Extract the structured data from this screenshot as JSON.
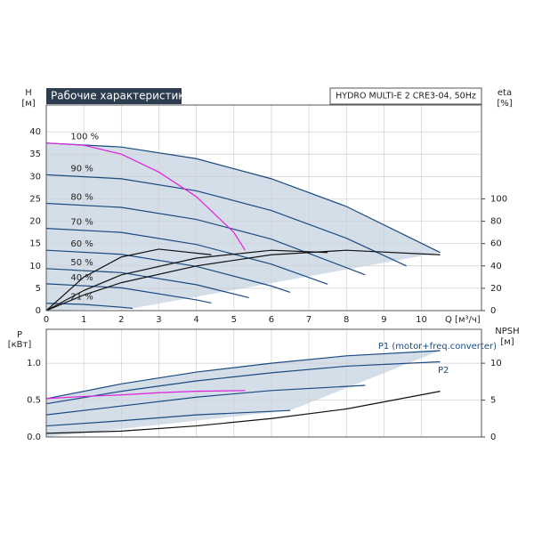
{
  "chart_data": [
    {
      "type": "line",
      "title": "Рабочие характеристики",
      "subtitle": "HYDRO MULTI-E 2 CRE3-04, 50Hz",
      "ylabel": "H",
      "yunit": "[м]",
      "y2label": "eta",
      "y2unit": "[%]",
      "xlabel": "Q [м³/ч]",
      "xlim": [
        0,
        11.6
      ],
      "xticks": [
        0,
        1,
        2,
        3,
        4,
        5,
        6,
        7,
        8,
        9,
        10
      ],
      "ylim": [
        0,
        46
      ],
      "yticks": [
        0,
        5,
        10,
        15,
        20,
        25,
        30,
        35,
        40
      ],
      "y2lim": [
        0,
        184
      ],
      "y2ticks": [
        0,
        20,
        40,
        60,
        80,
        100
      ],
      "grid": true,
      "series": [
        {
          "name": "100 %",
          "color": "#1a4a80",
          "x": [
            0,
            2,
            4,
            6,
            8,
            10.5
          ],
          "values": [
            37.5,
            36.6,
            34,
            29.5,
            23.3,
            13
          ]
        },
        {
          "name": "90 %",
          "color": "#1a4a80",
          "x": [
            0,
            2,
            4,
            6,
            8,
            9.6
          ],
          "values": [
            30.4,
            29.5,
            26.8,
            22.4,
            16.2,
            10
          ]
        },
        {
          "name": "80 %",
          "color": "#1a4a80",
          "x": [
            0,
            2,
            4,
            6,
            8.5
          ],
          "values": [
            24,
            23.1,
            20.4,
            16,
            8
          ]
        },
        {
          "name": "70 %",
          "color": "#1a4a80",
          "x": [
            0,
            2,
            4,
            6,
            7.5
          ],
          "values": [
            18.4,
            17.5,
            14.8,
            10.4,
            5.9
          ]
        },
        {
          "name": "60 %",
          "color": "#1a4a80",
          "x": [
            0,
            2,
            4,
            6,
            6.5
          ],
          "values": [
            13.5,
            12.6,
            9.9,
            5.5,
            4.1
          ]
        },
        {
          "name": "50 %",
          "color": "#1a4a80",
          "x": [
            0,
            2,
            4,
            5.4
          ],
          "values": [
            9.4,
            8.5,
            5.8,
            2.9
          ]
        },
        {
          "name": "40 %",
          "color": "#1a4a80",
          "x": [
            0,
            2,
            4,
            4.4
          ],
          "values": [
            6,
            5.1,
            2.4,
            1.7
          ]
        },
        {
          "name": "21 %",
          "color": "#1a4a80",
          "x": [
            0,
            1,
            2,
            2.3
          ],
          "values": [
            1.65,
            1.4,
            0.76,
            0.5
          ]
        },
        {
          "color": "#e020e0",
          "x": [
            0,
            1,
            2,
            3,
            4,
            5,
            5.3
          ],
          "values": [
            37.5,
            37,
            35,
            31,
            25.5,
            17.5,
            13.5
          ]
        },
        {
          "color": "#111111",
          "axis": "y2",
          "x": [
            0,
            1,
            2,
            4,
            6,
            8,
            10.5
          ],
          "values": [
            0,
            14,
            25,
            40,
            50,
            54,
            50
          ]
        },
        {
          "color": "#111111",
          "axis": "y2",
          "x": [
            0,
            1,
            2,
            4,
            6,
            7.5
          ],
          "values": [
            0,
            18,
            32,
            47,
            54,
            52
          ]
        },
        {
          "color": "#111111",
          "axis": "y2",
          "x": [
            0,
            1,
            2,
            3,
            4.4
          ],
          "values": [
            0,
            30,
            48,
            55,
            50
          ]
        }
      ]
    },
    {
      "type": "line",
      "ylabel": "P",
      "yunit": "[кВт]",
      "y2label": "NPSH",
      "y2unit": "[м]",
      "xlim": [
        0,
        11.6
      ],
      "ylim": [
        0,
        1.46
      ],
      "yticks": [
        {
          "value": 0,
          "label": "0.0"
        },
        0.5,
        {
          "value": 1,
          "label": "1.0"
        }
      ],
      "y2lim": [
        0,
        14.6
      ],
      "y2ticks": [
        0,
        5,
        10
      ],
      "grid": true,
      "series": [
        {
          "name": "P1 (motor+freq.converter)",
          "color": "#1a4a80",
          "x": [
            0,
            2,
            4,
            6,
            8,
            10.5
          ],
          "values": [
            0.52,
            0.72,
            0.88,
            1.0,
            1.1,
            1.17
          ]
        },
        {
          "color": "#1a4a80",
          "x": [
            0,
            2,
            4,
            6,
            8.5
          ],
          "values": [
            0.3,
            0.42,
            0.54,
            0.63,
            0.7
          ]
        },
        {
          "color": "#1a4a80",
          "x": [
            0,
            2,
            4,
            6.5
          ],
          "values": [
            0.15,
            0.22,
            0.3,
            0.36
          ]
        },
        {
          "name": "P2",
          "color": "#1a4a80",
          "x": [
            0,
            2,
            4,
            6,
            8,
            10.5
          ],
          "values": [
            0.45,
            0.62,
            0.76,
            0.87,
            0.96,
            1.02
          ]
        },
        {
          "color": "#e020e0",
          "x": [
            0,
            1,
            2,
            3,
            4,
            5.3
          ],
          "values": [
            0.52,
            0.55,
            0.57,
            0.6,
            0.62,
            0.63
          ]
        },
        {
          "color": "#111111",
          "axis": "y2",
          "x": [
            0,
            2,
            4,
            6,
            8,
            10.5
          ],
          "values": [
            0.5,
            0.8,
            1.5,
            2.5,
            3.8,
            6.2
          ]
        }
      ]
    }
  ]
}
